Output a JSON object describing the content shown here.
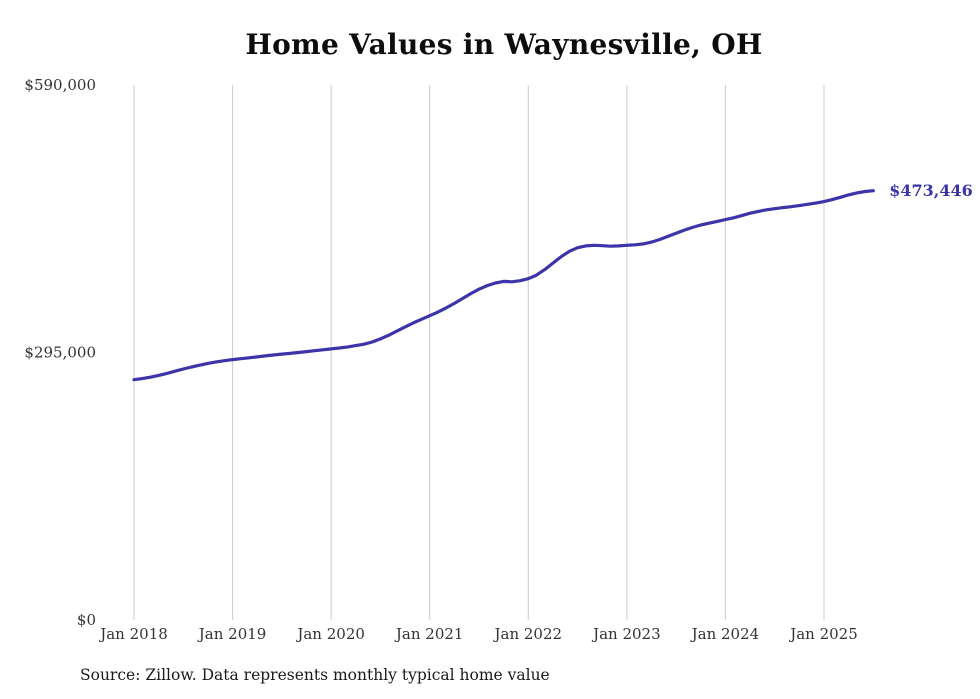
{
  "chart_data": {
    "type": "line",
    "title": "Home Values in Waynesville, OH",
    "end_label": "$473,446",
    "source": "Source: Zillow. Data represents monthly typical home value",
    "line_color": "#3b35a9",
    "grid_color": "#cccccc",
    "label_color": "#333333",
    "ylim": [
      0,
      590000
    ],
    "y_ticks": [
      {
        "label": "$590,000",
        "value": 590000
      },
      {
        "label": "$295,000",
        "value": 295000
      },
      {
        "label": "$0",
        "value": 0
      }
    ],
    "x_ticks": [
      "Jan 2018",
      "Jan 2019",
      "Jan 2020",
      "Jan 2021",
      "Jan 2022",
      "Jan 2023",
      "Jan 2024",
      "Jan 2025"
    ],
    "x_unit": "month",
    "legend": "none",
    "grid": "vertical-only",
    "values": [
      265000,
      266200,
      267800,
      269800,
      272000,
      274400,
      276800,
      279000,
      281000,
      283000,
      284600,
      286000,
      287200,
      288200,
      289200,
      290200,
      291200,
      292200,
      293200,
      294000,
      295000,
      296000,
      297000,
      298000,
      299000,
      300000,
      301200,
      302600,
      304200,
      306600,
      310000,
      314000,
      318600,
      323200,
      327600,
      331600,
      335600,
      339600,
      344200,
      349200,
      354600,
      360000,
      364800,
      368800,
      371600,
      373400,
      373000,
      374200,
      376400,
      380400,
      386400,
      393600,
      400600,
      406600,
      410600,
      412600,
      413200,
      412800,
      412200,
      412600,
      413200,
      413800,
      414800,
      416800,
      419600,
      423000,
      426600,
      430000,
      433000,
      435600,
      437600,
      439600,
      441600,
      443600,
      446000,
      448600,
      450600,
      452400,
      453600,
      454800,
      455800,
      457000,
      458400,
      459800,
      461400,
      463600,
      466200,
      468800,
      471000,
      472600,
      473446
    ]
  }
}
